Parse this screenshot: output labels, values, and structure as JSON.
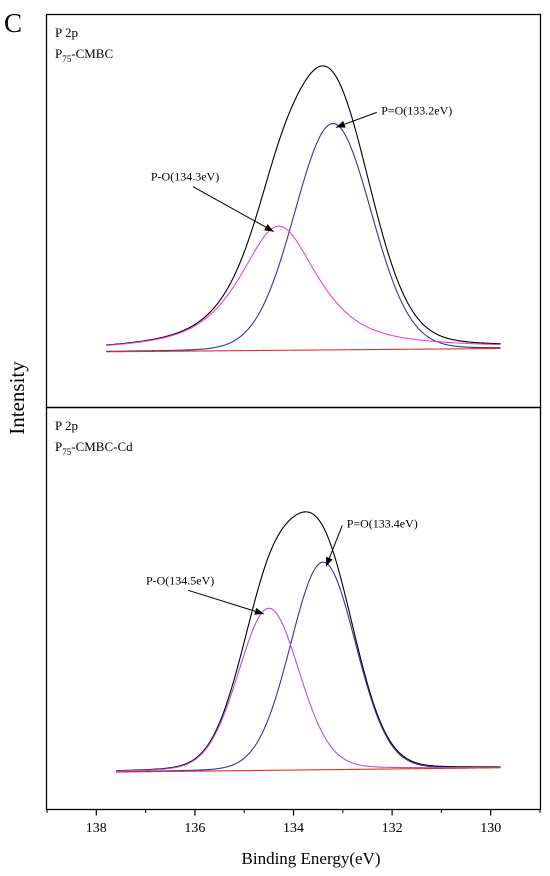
{
  "figure": {
    "panel_letter": "C",
    "ylabel": "Intensity",
    "xlabel": "Binding Energy(eV)"
  },
  "chart_data": {
    "type": "line",
    "xlabel": "Binding Energy(eV)",
    "ylabel": "Intensity",
    "xlim": [
      139,
      129
    ],
    "x_ticks": [
      138,
      136,
      134,
      132,
      130
    ],
    "x_reversed": true,
    "y_ticks_shown": false,
    "grid": false,
    "panels": [
      {
        "label_line1": "P 2p",
        "label_line2_main": "P",
        "label_line2_sub": "75",
        "label_line2_rest": "-CMBC",
        "x_range": [
          137.8,
          129.8
        ],
        "baseline": [
          0.0,
          0.012
        ],
        "ylim": [
          -0.2,
          1.22
        ],
        "series": [
          {
            "key": "envelope",
            "color": "#000000",
            "type": "sum"
          },
          {
            "key": "po_double",
            "color": "#3333aa",
            "type": "peak",
            "center": 133.2,
            "amp": 0.82,
            "sigma": 0.78,
            "eta": 0.05
          },
          {
            "key": "po_single",
            "color": "#ee44cc",
            "type": "peak",
            "center": 134.3,
            "amp": 0.45,
            "sigma": 0.8,
            "eta": 0.75
          },
          {
            "key": "baseline",
            "color": "#dd3322",
            "type": "baseline"
          }
        ],
        "annotations": [
          {
            "text": "P=O(133.2eV)",
            "x": 133.2,
            "y": 0.82,
            "text_x": 131.5,
            "text_y": 0.86
          },
          {
            "text": "P-O(134.3eV)",
            "x": 134.3,
            "y": 0.45,
            "text_x": 136.2,
            "text_y": 0.62
          }
        ]
      },
      {
        "label_line1": "P 2p",
        "label_line2_main": "P",
        "label_line2_sub": "75",
        "label_line2_rest": "-CMBC-Cd",
        "x_range": [
          137.6,
          129.8
        ],
        "baseline": [
          0.0,
          0.015
        ],
        "ylim": [
          -0.13,
          1.28
        ],
        "series": [
          {
            "key": "envelope",
            "color": "#000000",
            "type": "sum"
          },
          {
            "key": "po_double",
            "color": "#3333aa",
            "type": "peak",
            "center": 133.4,
            "amp": 0.73,
            "sigma": 0.66,
            "eta": 0.05
          },
          {
            "key": "po_single",
            "color": "#aa55dd",
            "type": "peak",
            "center": 134.5,
            "amp": 0.57,
            "sigma": 0.62,
            "eta": 0.12
          },
          {
            "key": "baseline",
            "color": "#dd3322",
            "type": "baseline"
          }
        ],
        "annotations": [
          {
            "text": "P=O(133.4eV)",
            "x": 133.4,
            "y": 0.73,
            "text_x": 132.2,
            "text_y": 0.86
          },
          {
            "text": "P-O(134.5eV)",
            "x": 134.5,
            "y": 0.57,
            "text_x": 136.3,
            "text_y": 0.66
          }
        ]
      }
    ]
  }
}
